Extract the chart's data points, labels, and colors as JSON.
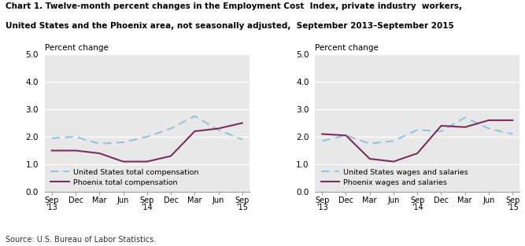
{
  "title_line1": "Chart 1. Twelve-month percent changes in the Employment Cost  Index, private industry  workers,",
  "title_line2": "United States and the Phoenix area, not seasonally adjusted,  September 2013–September 2015",
  "ylabel_left": "Percent change",
  "ylabel_right": "Percent change",
  "source": "Source: U.S. Bureau of Labor Statistics.",
  "xtick_labels": [
    "Sep\n'13",
    "Dec",
    "Mar",
    "Jun",
    "Sep\n'14",
    "Dec",
    "Mar",
    "Jun",
    "Sep\n'15"
  ],
  "ylim": [
    0.0,
    5.0
  ],
  "yticks": [
    0.0,
    1.0,
    2.0,
    3.0,
    4.0,
    5.0
  ],
  "left_chart": {
    "us_total_comp": [
      1.95,
      2.0,
      1.75,
      1.8,
      2.0,
      2.3,
      2.75,
      2.25,
      1.9
    ],
    "phoenix_total_comp": [
      1.5,
      1.5,
      1.4,
      1.1,
      1.1,
      1.3,
      2.2,
      2.3,
      2.5
    ],
    "legend1": "United States total compensation",
    "legend2": "Phoenix total compensation"
  },
  "right_chart": {
    "us_wages_salaries": [
      1.85,
      2.05,
      1.75,
      1.85,
      2.25,
      2.2,
      2.7,
      2.3,
      2.1
    ],
    "phoenix_wages_salaries": [
      2.1,
      2.05,
      1.2,
      1.1,
      1.4,
      2.4,
      2.35,
      2.6,
      2.6
    ],
    "legend1": "United States wages and salaries",
    "legend2": "Phoenix wages and salaries"
  },
  "us_line_color": "#92C5DE",
  "phoenix_line_color": "#7B2D5E",
  "background_color": "#E8E8E8",
  "grid_color": "#FFFFFF",
  "title_color": "#000000"
}
